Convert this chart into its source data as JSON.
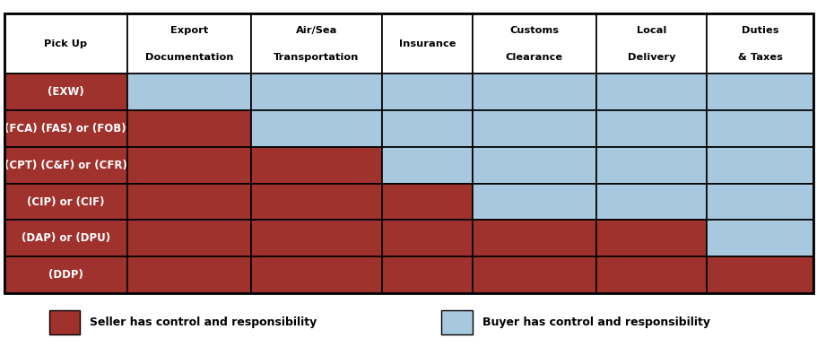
{
  "columns": [
    "Pick Up",
    "Export\nDocumentation",
    "Air/Sea\nTransportation",
    "Insurance",
    "Customs\nClearance",
    "Local\nDelivery",
    "Duties\n& Taxes"
  ],
  "rows": [
    {
      "label": "(EXW)",
      "seller_cols": 1
    },
    {
      "label": "(FCA) (FAS) or (FOB)",
      "seller_cols": 2
    },
    {
      "label": "(CPT) (C&F) or (CFR)",
      "seller_cols": 3
    },
    {
      "label": "(CIP) or (CIF)",
      "seller_cols": 4
    },
    {
      "label": "(DAP) or (DPU)",
      "seller_cols": 6
    },
    {
      "label": "(DDP)",
      "seller_cols": 7
    }
  ],
  "seller_color": "#A0322D",
  "buyer_color": "#A8C8E0",
  "border_color": "#000000",
  "header_text_color": "#000000",
  "legend_seller_label": "Seller has control and responsibility",
  "legend_buyer_label": "Buyer has control and responsibility",
  "col_widths": [
    1.5,
    1.5,
    1.6,
    1.1,
    1.5,
    1.35,
    1.3
  ],
  "fig_width": 9.12,
  "fig_height": 3.87
}
